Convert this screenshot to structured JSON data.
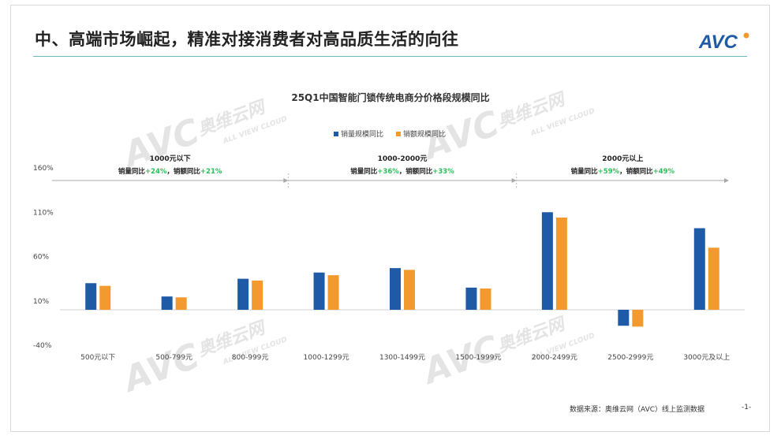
{
  "slide": {
    "title": "中、高端市场崛起，精准对接消费者对高品质生活的向往",
    "logo_text": "AVC",
    "footer_source": "数据来源：奥维云网（AVC）线上监测数据",
    "page_number": "-1-",
    "accent_color": "#6cb8b8",
    "watermark_brand": "AVC",
    "watermark_cn": "奥维云网",
    "watermark_en": "ALL VIEW CLOUD"
  },
  "chart_data": {
    "type": "bar",
    "title": "25Q1中国智能门锁传统电商分价格段规模同比",
    "categories": [
      "500元以下",
      "500-799元",
      "800-999元",
      "1000-1299元",
      "1300-1499元",
      "1500-1999元",
      "2000-2499元",
      "2500-2999元",
      "3000元及以上"
    ],
    "series": [
      {
        "name": "销量规模同比",
        "color": "#1f5aa6",
        "values": [
          30,
          15,
          35,
          42,
          47,
          25,
          110,
          -18,
          92
        ]
      },
      {
        "name": "销额规模同比",
        "color": "#f29a2e",
        "values": [
          27,
          14,
          33,
          39,
          45,
          24,
          104,
          -19,
          70
        ]
      }
    ],
    "y_ticks": [
      "160%",
      "110%",
      "60%",
      "10%",
      "-40%"
    ],
    "ylim": [
      -40,
      160
    ],
    "legend_position": "top-center",
    "grid": false,
    "segments": [
      {
        "label": "1000元以下",
        "note_prefix": "销量同比",
        "volume": "+24%",
        "note_mid": "，销额同比",
        "value": "+21%",
        "from": 0,
        "to": 3
      },
      {
        "label": "1000-2000元",
        "note_prefix": "销量同比",
        "volume": "+36%",
        "note_mid": "，销额同比",
        "value": "+33%",
        "from": 3,
        "to": 6
      },
      {
        "label": "2000元以上",
        "note_prefix": "销量同比",
        "volume": "+59%",
        "note_mid": "，销额同比",
        "value": "+49%",
        "from": 6,
        "to": 9
      }
    ]
  }
}
